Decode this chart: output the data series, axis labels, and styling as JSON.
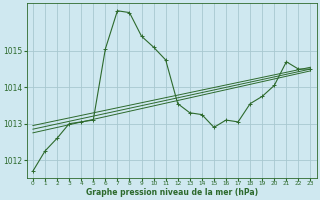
{
  "title": "Graphe pression niveau de la mer (hPa)",
  "bg_color": "#cfe8f0",
  "grid_color": "#a8c8d0",
  "line_color": "#2d6a2d",
  "xlim": [
    -0.5,
    23.5
  ],
  "ylim": [
    1011.5,
    1016.3
  ],
  "yticks": [
    1012,
    1013,
    1014,
    1015
  ],
  "xticks": [
    0,
    1,
    2,
    3,
    4,
    5,
    6,
    7,
    8,
    9,
    10,
    11,
    12,
    13,
    14,
    15,
    16,
    17,
    18,
    19,
    20,
    21,
    22,
    23
  ],
  "main_line": {
    "x": [
      0,
      1,
      2,
      3,
      4,
      5,
      6,
      7,
      8,
      9,
      10,
      11,
      12,
      13,
      14,
      15,
      16,
      17,
      18,
      19,
      20,
      21,
      22,
      23
    ],
    "y": [
      1011.7,
      1012.25,
      1012.6,
      1013.0,
      1013.05,
      1013.1,
      1015.05,
      1016.1,
      1016.05,
      1015.4,
      1015.1,
      1014.75,
      1013.55,
      1013.3,
      1013.25,
      1012.9,
      1013.1,
      1013.05,
      1013.55,
      1013.75,
      1014.05,
      1014.7,
      1014.5,
      1014.5
    ]
  },
  "trend_lines": [
    {
      "x": [
        0,
        23
      ],
      "y": [
        1012.75,
        1014.45
      ]
    },
    {
      "x": [
        0,
        23
      ],
      "y": [
        1012.85,
        1014.5
      ]
    },
    {
      "x": [
        0,
        23
      ],
      "y": [
        1012.95,
        1014.55
      ]
    }
  ]
}
